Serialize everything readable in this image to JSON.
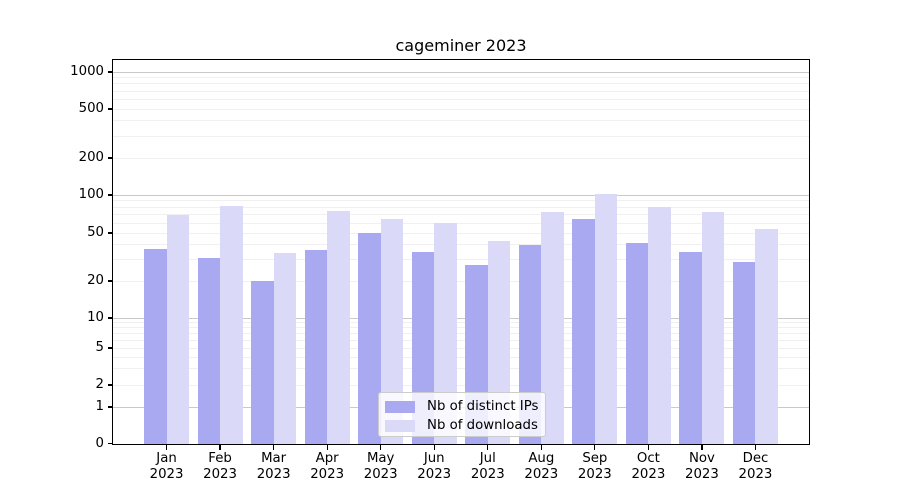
{
  "chart_data": {
    "type": "bar",
    "title": "cageminer 2023",
    "months": [
      "Jan",
      "Feb",
      "Mar",
      "Apr",
      "May",
      "Jun",
      "Jul",
      "Aug",
      "Sep",
      "Oct",
      "Nov",
      "Dec"
    ],
    "year_label": "2023",
    "series": [
      {
        "key": "distinct-ips",
        "name": "Nb of distinct IPs",
        "color": "#a9a9f2",
        "values": [
          37,
          31,
          20,
          36,
          50,
          35,
          27,
          40,
          65,
          41,
          35,
          29
        ]
      },
      {
        "key": "downloads",
        "name": "Nb of downloads",
        "color": "#dadaf8",
        "values": [
          70,
          82,
          34,
          75,
          65,
          60,
          43,
          74,
          101,
          81,
          74,
          54
        ]
      }
    ],
    "y_ticks": [
      0,
      1,
      2,
      5,
      10,
      20,
      50,
      100,
      200,
      500,
      1000
    ],
    "y_scale": "symlog",
    "ylim": [
      0,
      1250
    ],
    "grid": true,
    "legend_position": "lower center"
  }
}
